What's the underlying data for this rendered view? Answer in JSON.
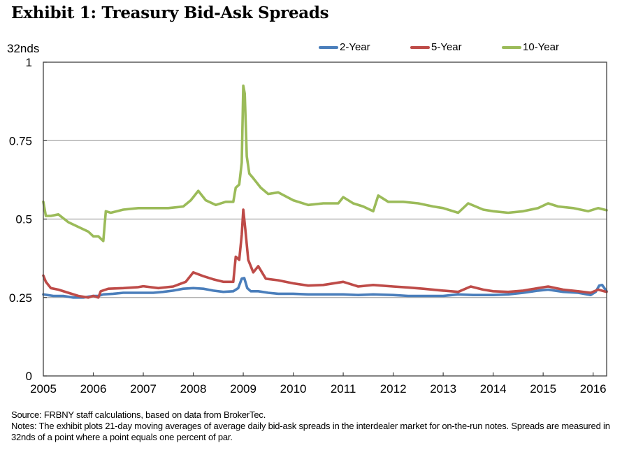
{
  "title": "Exhibit 1: Treasury Bid-Ask Spreads",
  "source": "Source: FRBNY staff calculations, based on data from BrokerTec.",
  "notes": "Notes: The exhibit plots 21-day moving averages of average daily bid-ask spreads in the interdealer market for on-the-run notes.  Spreads are measured in 32nds of a point where a point equals one percent of par.",
  "chart_data": {
    "type": "line",
    "title": "Exhibit 1: Treasury Bid-Ask Spreads",
    "ylabel": "32nds",
    "xlabel": "",
    "ylim": [
      0,
      1
    ],
    "xlim": [
      2005,
      2016.27
    ],
    "yticks": [
      "0",
      "0.25",
      "0.5",
      "0.75",
      "1"
    ],
    "ytick_values": [
      0,
      0.25,
      0.5,
      0.75,
      1
    ],
    "xticks": [
      "2005",
      "2006",
      "2007",
      "2008",
      "2009",
      "2010",
      "2011",
      "2012",
      "2013",
      "2014",
      "2015",
      "2016"
    ],
    "grid": "horizontal",
    "legend_position": "top",
    "series": [
      {
        "name": "2-Year",
        "color": "#4A7EBB",
        "x": [
          2005.0,
          2005.2,
          2005.4,
          2005.6,
          2005.8,
          2006.0,
          2006.1,
          2006.2,
          2006.4,
          2006.6,
          2006.8,
          2007.0,
          2007.2,
          2007.4,
          2007.6,
          2007.8,
          2008.0,
          2008.2,
          2008.4,
          2008.6,
          2008.8,
          2008.9,
          2008.97,
          2009.02,
          2009.08,
          2009.15,
          2009.3,
          2009.5,
          2009.7,
          2010.0,
          2010.3,
          2010.6,
          2011.0,
          2011.3,
          2011.6,
          2012.0,
          2012.3,
          2012.6,
          2013.0,
          2013.3,
          2013.6,
          2014.0,
          2014.3,
          2014.6,
          2014.9,
          2015.1,
          2015.4,
          2015.7,
          2015.95,
          2016.05,
          2016.12,
          2016.18,
          2016.27
        ],
        "values": [
          0.26,
          0.255,
          0.255,
          0.25,
          0.25,
          0.255,
          0.255,
          0.26,
          0.262,
          0.265,
          0.265,
          0.265,
          0.265,
          0.268,
          0.272,
          0.278,
          0.28,
          0.278,
          0.272,
          0.268,
          0.27,
          0.28,
          0.31,
          0.312,
          0.28,
          0.27,
          0.27,
          0.265,
          0.262,
          0.262,
          0.26,
          0.26,
          0.26,
          0.258,
          0.26,
          0.258,
          0.255,
          0.255,
          0.255,
          0.26,
          0.258,
          0.258,
          0.26,
          0.265,
          0.272,
          0.275,
          0.268,
          0.265,
          0.258,
          0.268,
          0.288,
          0.29,
          0.27
        ]
      },
      {
        "name": "5-Year",
        "color": "#BE4B48",
        "x": [
          2005.0,
          2005.05,
          2005.15,
          2005.3,
          2005.5,
          2005.7,
          2005.9,
          2006.0,
          2006.1,
          2006.15,
          2006.3,
          2006.6,
          2006.9,
          2007.0,
          2007.3,
          2007.6,
          2007.85,
          2008.0,
          2008.2,
          2008.4,
          2008.6,
          2008.8,
          2008.85,
          2008.92,
          2008.97,
          2009.0,
          2009.04,
          2009.1,
          2009.2,
          2009.3,
          2009.45,
          2009.7,
          2010.0,
          2010.3,
          2010.6,
          2011.0,
          2011.3,
          2011.6,
          2012.0,
          2012.3,
          2012.6,
          2013.0,
          2013.3,
          2013.55,
          2013.8,
          2014.0,
          2014.3,
          2014.6,
          2014.9,
          2015.1,
          2015.4,
          2015.7,
          2015.95,
          2016.1,
          2016.27
        ],
        "values": [
          0.32,
          0.3,
          0.28,
          0.275,
          0.265,
          0.255,
          0.25,
          0.255,
          0.25,
          0.27,
          0.278,
          0.28,
          0.283,
          0.286,
          0.28,
          0.285,
          0.3,
          0.33,
          0.318,
          0.308,
          0.3,
          0.3,
          0.38,
          0.37,
          0.45,
          0.53,
          0.47,
          0.37,
          0.33,
          0.35,
          0.31,
          0.305,
          0.295,
          0.288,
          0.29,
          0.3,
          0.285,
          0.29,
          0.285,
          0.282,
          0.278,
          0.272,
          0.268,
          0.285,
          0.275,
          0.27,
          0.268,
          0.272,
          0.28,
          0.285,
          0.275,
          0.27,
          0.265,
          0.275,
          0.268
        ]
      },
      {
        "name": "10-Year",
        "color": "#9BBB59",
        "x": [
          2005.0,
          2005.05,
          2005.15,
          2005.3,
          2005.5,
          2005.7,
          2005.9,
          2006.0,
          2006.1,
          2006.2,
          2006.25,
          2006.35,
          2006.6,
          2006.9,
          2007.2,
          2007.5,
          2007.8,
          2007.95,
          2008.1,
          2008.25,
          2008.45,
          2008.65,
          2008.8,
          2008.85,
          2008.92,
          2008.97,
          2009.0,
          2009.03,
          2009.07,
          2009.12,
          2009.2,
          2009.35,
          2009.5,
          2009.7,
          2010.0,
          2010.3,
          2010.6,
          2010.9,
          2011.0,
          2011.2,
          2011.4,
          2011.6,
          2011.7,
          2011.9,
          2012.2,
          2012.5,
          2012.8,
          2013.0,
          2013.3,
          2013.5,
          2013.8,
          2014.0,
          2014.3,
          2014.6,
          2014.9,
          2015.1,
          2015.3,
          2015.6,
          2015.9,
          2016.1,
          2016.27
        ],
        "values": [
          0.555,
          0.51,
          0.51,
          0.515,
          0.49,
          0.475,
          0.46,
          0.445,
          0.445,
          0.43,
          0.525,
          0.52,
          0.53,
          0.535,
          0.535,
          0.535,
          0.54,
          0.56,
          0.59,
          0.56,
          0.545,
          0.555,
          0.555,
          0.6,
          0.61,
          0.68,
          0.925,
          0.9,
          0.7,
          0.645,
          0.63,
          0.6,
          0.58,
          0.585,
          0.56,
          0.545,
          0.55,
          0.55,
          0.57,
          0.55,
          0.54,
          0.525,
          0.575,
          0.555,
          0.555,
          0.55,
          0.54,
          0.535,
          0.52,
          0.55,
          0.53,
          0.525,
          0.52,
          0.525,
          0.535,
          0.55,
          0.54,
          0.535,
          0.525,
          0.535,
          0.528
        ]
      }
    ]
  }
}
